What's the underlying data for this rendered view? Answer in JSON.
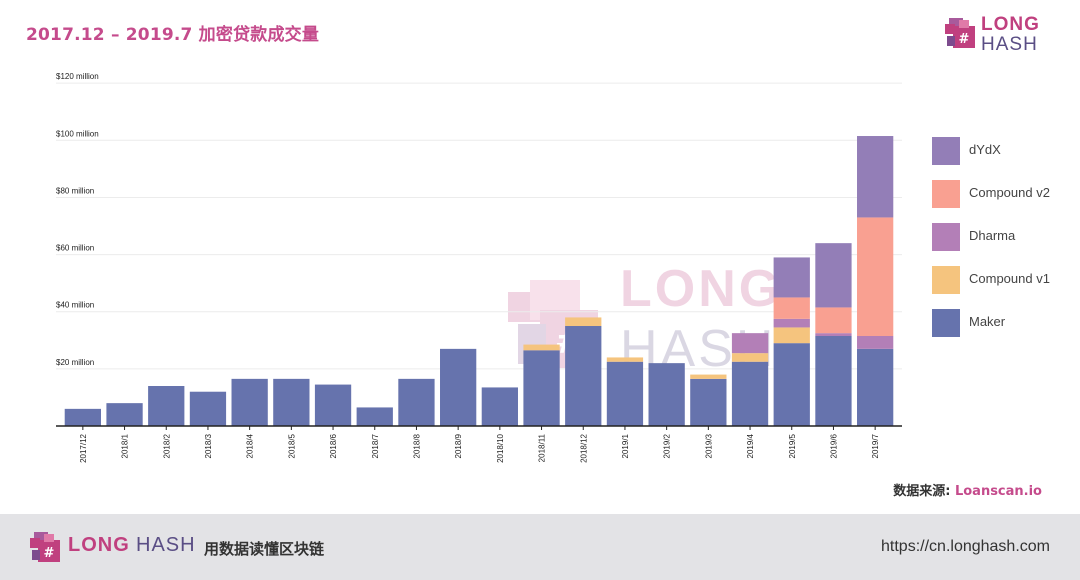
{
  "header": {
    "title": "2017.12 – 2019.7 加密贷款成交量"
  },
  "brand": {
    "word1": "LONG",
    "word2": "HASH",
    "watermark_word1": "LONG",
    "watermark_word2": "HASH"
  },
  "colors": {
    "title": "#c54b8c",
    "brand_pink": "#c0407f",
    "brand_purple": "#5a4e85"
  },
  "chart_data": {
    "type": "bar",
    "stacked": true,
    "categories": [
      "2017/12",
      "2018/1",
      "2018/2",
      "2018/3",
      "2018/4",
      "2018/5",
      "2018/6",
      "2018/7",
      "2018/8",
      "2018/9",
      "2018/10",
      "2018/11",
      "2018/12",
      "2019/1",
      "2019/2",
      "2019/3",
      "2019/4",
      "2019/5",
      "2019/6",
      "2019/7"
    ],
    "series": [
      {
        "name": "Maker",
        "color": "#6673ad",
        "values": [
          6,
          8,
          14,
          12,
          16.5,
          16.5,
          14.5,
          6.5,
          16.5,
          27,
          13.5,
          26.5,
          35,
          22.5,
          22,
          16.5,
          22.5,
          29,
          31.5,
          27
        ]
      },
      {
        "name": "Compound v1",
        "color": "#f5c47e",
        "values": [
          0,
          0,
          0,
          0,
          0,
          0,
          0,
          0,
          0,
          0,
          0,
          2,
          3,
          1.5,
          0,
          1.5,
          3,
          5.5,
          0,
          0
        ]
      },
      {
        "name": "Dharma",
        "color": "#b37fb7",
        "values": [
          0,
          0,
          0,
          0,
          0,
          0,
          0,
          0,
          0,
          0,
          0,
          0,
          0,
          0,
          0,
          0,
          7,
          3,
          1,
          4.5
        ]
      },
      {
        "name": "Compound v2",
        "color": "#f9a091",
        "values": [
          0,
          0,
          0,
          0,
          0,
          0,
          0,
          0,
          0,
          0,
          0,
          0,
          0,
          0,
          0,
          0,
          0,
          7.5,
          9,
          41.5
        ]
      },
      {
        "name": "dYdX",
        "color": "#937eb7",
        "values": [
          0,
          0,
          0,
          0,
          0,
          0,
          0,
          0,
          0,
          0,
          0,
          0,
          0,
          0,
          0,
          0,
          0,
          14,
          22.5,
          28.5
        ]
      }
    ],
    "legend_order": [
      "dYdX",
      "Compound v2",
      "Dharma",
      "Compound v1",
      "Maker"
    ],
    "yticks": [
      20,
      40,
      60,
      80,
      100,
      120
    ],
    "ytick_labels": [
      "$20 million",
      "$40 million",
      "$60 million",
      "$80 million",
      "$100 million",
      "$120 million"
    ],
    "ylim": [
      0,
      120
    ],
    "grid": true,
    "legend_position": "right",
    "xlabel": "",
    "ylabel": ""
  },
  "source": {
    "label": "数据来源: ",
    "site": "Loanscan.io"
  },
  "footer": {
    "slogan": "用数据读懂区块链",
    "url": "https://cn.longhash.com"
  }
}
